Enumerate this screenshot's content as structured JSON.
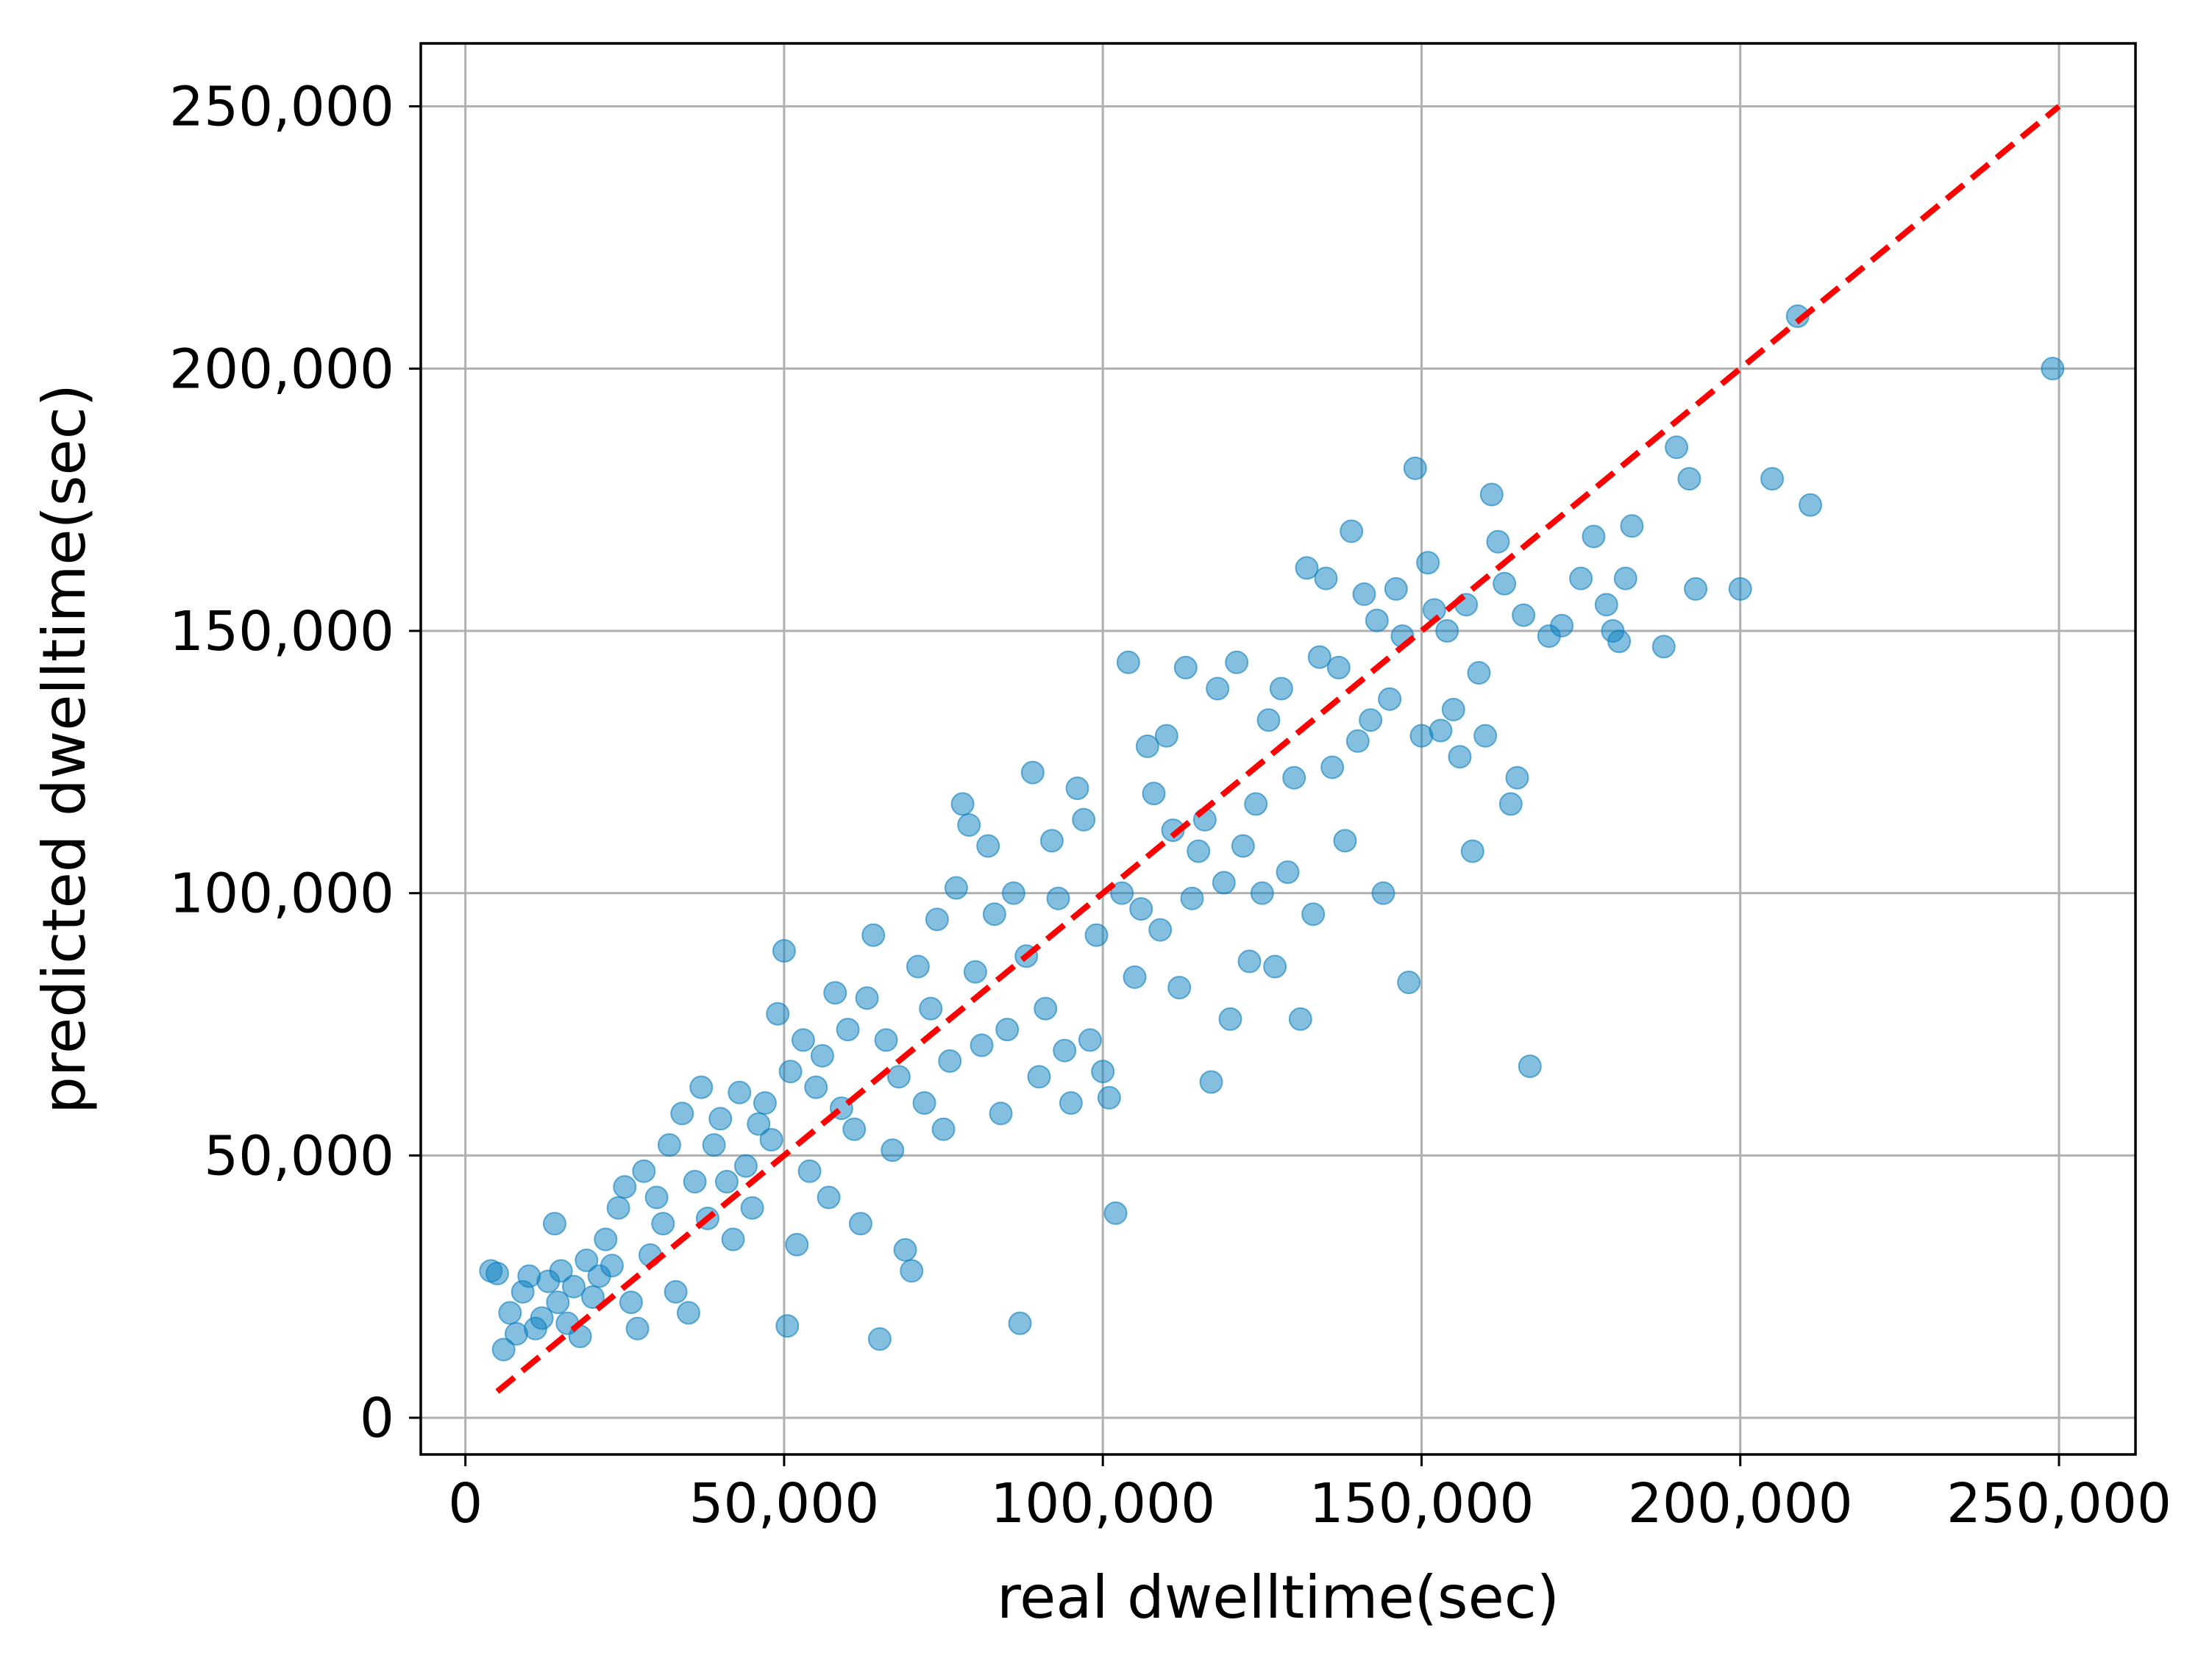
{
  "chart_data": {
    "type": "scatter",
    "title": "",
    "xlabel": "real dwelltime(sec)",
    "ylabel": "predicted dwelltime(sec)",
    "xlim": [
      -7000,
      262000
    ],
    "ylim": [
      -7000,
      262000
    ],
    "xticks": [
      0,
      50000,
      100000,
      150000,
      200000,
      250000
    ],
    "yticks": [
      0,
      50000,
      100000,
      150000,
      200000,
      250000
    ],
    "xtick_labels": [
      "0",
      "50,000",
      "100,000",
      "150,000",
      "200,000",
      "250,000"
    ],
    "ytick_labels": [
      "0",
      "50,000",
      "100,000",
      "150,000",
      "200,000",
      "250,000"
    ],
    "grid": true,
    "legend": "none",
    "colors": {
      "points": "#0a7fc0",
      "reference_line": "#ff0000"
    },
    "reference_line": {
      "style": "dashed",
      "x": [
        5000,
        250000
      ],
      "y": [
        5000,
        250000
      ]
    },
    "series": [
      {
        "points": [
          [
            4000,
            28000
          ],
          [
            5000,
            27500
          ],
          [
            6000,
            13000
          ],
          [
            7000,
            20000
          ],
          [
            8000,
            16000
          ],
          [
            9000,
            24000
          ],
          [
            10000,
            27000
          ],
          [
            11000,
            17000
          ],
          [
            12000,
            19000
          ],
          [
            13000,
            26000
          ],
          [
            14000,
            37000
          ],
          [
            14500,
            22000
          ],
          [
            15000,
            28000
          ],
          [
            16000,
            18000
          ],
          [
            17000,
            25000
          ],
          [
            18000,
            15500
          ],
          [
            19000,
            30000
          ],
          [
            20000,
            23000
          ],
          [
            21000,
            27000
          ],
          [
            22000,
            34000
          ],
          [
            23000,
            29000
          ],
          [
            24000,
            40000
          ],
          [
            25000,
            44000
          ],
          [
            26000,
            22000
          ],
          [
            27000,
            17000
          ],
          [
            28000,
            47000
          ],
          [
            29000,
            31000
          ],
          [
            30000,
            42000
          ],
          [
            31000,
            37000
          ],
          [
            32000,
            52000
          ],
          [
            33000,
            24000
          ],
          [
            34000,
            58000
          ],
          [
            35000,
            20000
          ],
          [
            36000,
            45000
          ],
          [
            37000,
            63000
          ],
          [
            38000,
            38000
          ],
          [
            39000,
            52000
          ],
          [
            40000,
            57000
          ],
          [
            41000,
            45000
          ],
          [
            42000,
            34000
          ],
          [
            43000,
            62000
          ],
          [
            44000,
            48000
          ],
          [
            45000,
            40000
          ],
          [
            46000,
            56000
          ],
          [
            47000,
            60000
          ],
          [
            48000,
            53000
          ],
          [
            49000,
            77000
          ],
          [
            50000,
            89000
          ],
          [
            50500,
            17500
          ],
          [
            51000,
            66000
          ],
          [
            52000,
            33000
          ],
          [
            53000,
            72000
          ],
          [
            54000,
            47000
          ],
          [
            55000,
            63000
          ],
          [
            56000,
            69000
          ],
          [
            57000,
            42000
          ],
          [
            58000,
            81000
          ],
          [
            59000,
            59000
          ],
          [
            60000,
            74000
          ],
          [
            61000,
            55000
          ],
          [
            62000,
            37000
          ],
          [
            63000,
            80000
          ],
          [
            64000,
            92000
          ],
          [
            65000,
            15000
          ],
          [
            66000,
            72000
          ],
          [
            67000,
            51000
          ],
          [
            68000,
            65000
          ],
          [
            69000,
            32000
          ],
          [
            70000,
            28000
          ],
          [
            71000,
            86000
          ],
          [
            72000,
            60000
          ],
          [
            73000,
            78000
          ],
          [
            74000,
            95000
          ],
          [
            75000,
            55000
          ],
          [
            76000,
            68000
          ],
          [
            77000,
            101000
          ],
          [
            78000,
            117000
          ],
          [
            79000,
            113000
          ],
          [
            80000,
            85000
          ],
          [
            81000,
            71000
          ],
          [
            82000,
            109000
          ],
          [
            83000,
            96000
          ],
          [
            84000,
            58000
          ],
          [
            85000,
            74000
          ],
          [
            86000,
            100000
          ],
          [
            87000,
            18000
          ],
          [
            88000,
            88000
          ],
          [
            89000,
            123000
          ],
          [
            90000,
            65000
          ],
          [
            91000,
            78000
          ],
          [
            92000,
            110000
          ],
          [
            93000,
            99000
          ],
          [
            94000,
            70000
          ],
          [
            95000,
            60000
          ],
          [
            96000,
            120000
          ],
          [
            97000,
            114000
          ],
          [
            98000,
            72000
          ],
          [
            99000,
            92000
          ],
          [
            100000,
            66000
          ],
          [
            101000,
            61000
          ],
          [
            102000,
            39000
          ],
          [
            103000,
            100000
          ],
          [
            104000,
            144000
          ],
          [
            105000,
            84000
          ],
          [
            106000,
            97000
          ],
          [
            107000,
            128000
          ],
          [
            108000,
            119000
          ],
          [
            109000,
            93000
          ],
          [
            110000,
            130000
          ],
          [
            111000,
            112000
          ],
          [
            112000,
            82000
          ],
          [
            113000,
            143000
          ],
          [
            114000,
            99000
          ],
          [
            115000,
            108000
          ],
          [
            116000,
            114000
          ],
          [
            117000,
            64000
          ],
          [
            118000,
            139000
          ],
          [
            119000,
            102000
          ],
          [
            120000,
            76000
          ],
          [
            121000,
            144000
          ],
          [
            122000,
            109000
          ],
          [
            123000,
            87000
          ],
          [
            124000,
            117000
          ],
          [
            125000,
            100000
          ],
          [
            126000,
            133000
          ],
          [
            127000,
            86000
          ],
          [
            128000,
            139000
          ],
          [
            129000,
            104000
          ],
          [
            130000,
            122000
          ],
          [
            131000,
            76000
          ],
          [
            132000,
            162000
          ],
          [
            133000,
            96000
          ],
          [
            134000,
            145000
          ],
          [
            135000,
            160000
          ],
          [
            136000,
            124000
          ],
          [
            137000,
            143000
          ],
          [
            138000,
            110000
          ],
          [
            139000,
            169000
          ],
          [
            140000,
            129000
          ],
          [
            141000,
            157000
          ],
          [
            142000,
            133000
          ],
          [
            143000,
            152000
          ],
          [
            144000,
            100000
          ],
          [
            145000,
            137000
          ],
          [
            146000,
            158000
          ],
          [
            147000,
            149000
          ],
          [
            148000,
            83000
          ],
          [
            149000,
            181000
          ],
          [
            150000,
            130000
          ],
          [
            151000,
            163000
          ],
          [
            152000,
            154000
          ],
          [
            153000,
            131000
          ],
          [
            154000,
            150000
          ],
          [
            155000,
            135000
          ],
          [
            156000,
            126000
          ],
          [
            157000,
            155000
          ],
          [
            158000,
            108000
          ],
          [
            159000,
            142000
          ],
          [
            160000,
            130000
          ],
          [
            161000,
            176000
          ],
          [
            162000,
            167000
          ],
          [
            163000,
            159000
          ],
          [
            164000,
            117000
          ],
          [
            165000,
            122000
          ],
          [
            166000,
            153000
          ],
          [
            167000,
            67000
          ],
          [
            170000,
            149000
          ],
          [
            172000,
            151000
          ],
          [
            175000,
            160000
          ],
          [
            177000,
            168000
          ],
          [
            179000,
            155000
          ],
          [
            180000,
            150000
          ],
          [
            181000,
            148000
          ],
          [
            182000,
            160000
          ],
          [
            183000,
            170000
          ],
          [
            188000,
            147000
          ],
          [
            190000,
            185000
          ],
          [
            192000,
            179000
          ],
          [
            193000,
            158000
          ],
          [
            200000,
            158000
          ],
          [
            205000,
            179000
          ],
          [
            209000,
            210000
          ],
          [
            211000,
            174000
          ],
          [
            249000,
            200000
          ]
        ]
      }
    ]
  }
}
